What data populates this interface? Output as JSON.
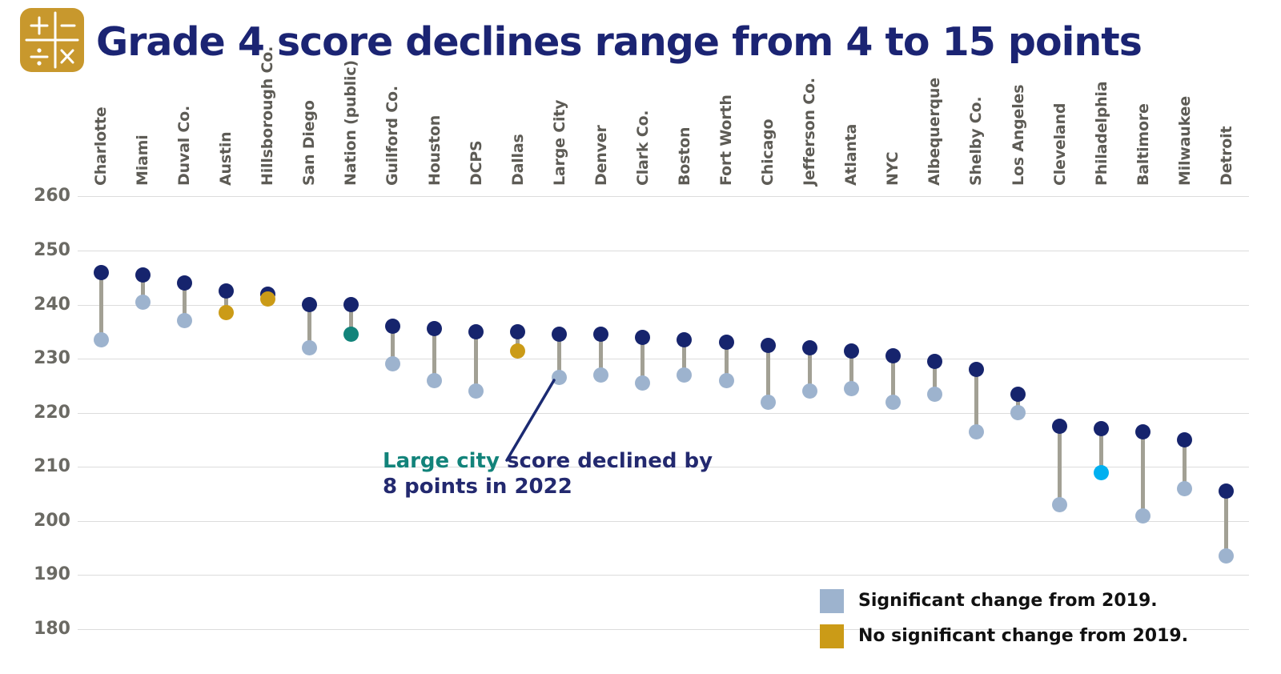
{
  "page": {
    "title": "Grade 4 score declines range from 4 to 15 points"
  },
  "annotation": {
    "highlight": "Large city",
    "line1_rest": " score declined by",
    "line2": "8 points in 2022"
  },
  "legend": [
    {
      "label": "Significant change from 2019.",
      "color_key": "significant"
    },
    {
      "label": "No significant change from 2019.",
      "color_key": "no_change"
    }
  ],
  "colors": {
    "navy_2019": "#16246d",
    "significant": "#9db3ce",
    "no_change": "#cb9b17",
    "nation_highlight": "#12837a",
    "philadelphia_highlight": "#00b0f0",
    "stem": "#a2a094",
    "gridline": "#dcdcdc",
    "title": "#1b2473",
    "annotation_navy": "#23296f",
    "annotation_teal": "#12837a"
  },
  "chart_data": {
    "type": "dumbbell",
    "title": "Grade 4 score declines range from 4 to 15 points",
    "xlabel": "",
    "ylabel": "",
    "ylim": [
      180,
      260
    ],
    "yticks": [
      260,
      250,
      240,
      230,
      220,
      210,
      200,
      190,
      180
    ],
    "grid": true,
    "series": [
      "2019 score (navy dot)",
      "2022 score (lower dot)"
    ],
    "cities": [
      {
        "name": "Charlotte",
        "score_2019": 246,
        "score_2022": 233.5,
        "change": "significant"
      },
      {
        "name": "Miami",
        "score_2019": 245.5,
        "score_2022": 240.5,
        "change": "significant"
      },
      {
        "name": "Duval Co.",
        "score_2019": 244,
        "score_2022": 237,
        "change": "significant"
      },
      {
        "name": "Austin",
        "score_2019": 242.5,
        "score_2022": 238.5,
        "change": "no_change"
      },
      {
        "name": "Hillsborough Co.",
        "score_2019": 242,
        "score_2022": 241,
        "change": "no_change"
      },
      {
        "name": "San Diego",
        "score_2019": 240,
        "score_2022": 232,
        "change": "significant"
      },
      {
        "name": "Nation (public)",
        "score_2019": 240,
        "score_2022": 234.5,
        "change": "significant",
        "dot_2022_color": "nation_highlight"
      },
      {
        "name": "Guilford Co.",
        "score_2019": 236,
        "score_2022": 229,
        "change": "significant"
      },
      {
        "name": "Houston",
        "score_2019": 235.5,
        "score_2022": 226,
        "change": "significant"
      },
      {
        "name": "DCPS",
        "score_2019": 235,
        "score_2022": 224,
        "change": "significant"
      },
      {
        "name": "Dallas",
        "score_2019": 235,
        "score_2022": 231.5,
        "change": "no_change"
      },
      {
        "name": "Large City",
        "score_2019": 234.5,
        "score_2022": 226.5,
        "change": "significant"
      },
      {
        "name": "Denver",
        "score_2019": 234.5,
        "score_2022": 227,
        "change": "significant"
      },
      {
        "name": "Clark Co.",
        "score_2019": 234,
        "score_2022": 225.5,
        "change": "significant"
      },
      {
        "name": "Boston",
        "score_2019": 233.5,
        "score_2022": 227,
        "change": "significant"
      },
      {
        "name": "Fort Worth",
        "score_2019": 233,
        "score_2022": 226,
        "change": "significant"
      },
      {
        "name": "Chicago",
        "score_2019": 232.5,
        "score_2022": 222,
        "change": "significant"
      },
      {
        "name": "Jefferson Co.",
        "score_2019": 232,
        "score_2022": 224,
        "change": "significant"
      },
      {
        "name": "Atlanta",
        "score_2019": 231.5,
        "score_2022": 224.5,
        "change": "significant"
      },
      {
        "name": "NYC",
        "score_2019": 230.5,
        "score_2022": 222,
        "change": "significant"
      },
      {
        "name": "Albequerque",
        "score_2019": 229.5,
        "score_2022": 223.5,
        "change": "significant"
      },
      {
        "name": "Shelby Co.",
        "score_2019": 228,
        "score_2022": 216.5,
        "change": "significant"
      },
      {
        "name": "Los Angeles",
        "score_2019": 223.5,
        "score_2022": 220,
        "change": "significant"
      },
      {
        "name": "Cleveland",
        "score_2019": 217.5,
        "score_2022": 203,
        "change": "significant"
      },
      {
        "name": "Philadelphia",
        "score_2019": 217,
        "score_2022": 209,
        "change": "significant",
        "dot_2022_color": "philadelphia_highlight"
      },
      {
        "name": "Baltimore",
        "score_2019": 216.5,
        "score_2022": 201,
        "change": "significant"
      },
      {
        "name": "Milwaukee",
        "score_2019": 215,
        "score_2022": 206,
        "change": "significant"
      },
      {
        "name": "Detroit",
        "score_2019": 205.5,
        "score_2022": 193.5,
        "change": "significant"
      }
    ]
  }
}
